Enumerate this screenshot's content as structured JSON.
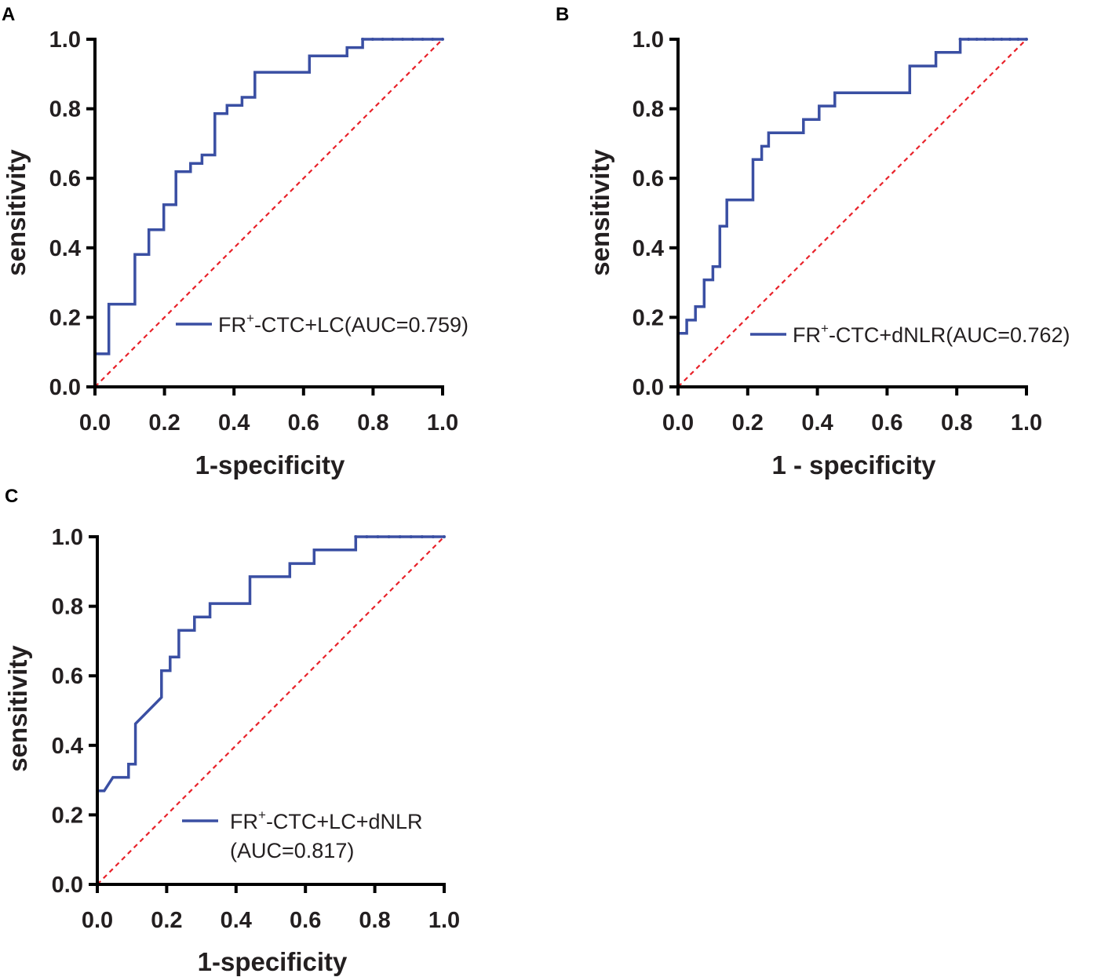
{
  "chart_data": [
    {
      "type": "line",
      "panel": "A",
      "xlabel": "1-specificity",
      "ylabel": "sensitivity",
      "xlim": [
        0,
        1
      ],
      "ylim": [
        0,
        1
      ],
      "xticks": [
        "0.0",
        "0.2",
        "0.4",
        "0.6",
        "0.8",
        "1.0"
      ],
      "yticks": [
        "0.0",
        "0.2",
        "0.4",
        "0.6",
        "0.8",
        "1.0"
      ],
      "legend": {
        "prefix": "FR",
        "sup": "+",
        "suffix": "-CTC+LC(AUC=0.759)",
        "line2": ""
      },
      "series": [
        {
          "name": "FR+-CTC+LC (AUC=0.759)",
          "color": "#3a4fa3",
          "x": [
            0,
            0,
            0.04,
            0.04,
            0.115,
            0.115,
            0.155,
            0.155,
            0.198,
            0.198,
            0.233,
            0.233,
            0.275,
            0.275,
            0.308,
            0.308,
            0.345,
            0.345,
            0.38,
            0.38,
            0.4,
            0.4,
            0.423,
            0.423,
            0.46,
            0.46,
            0.617,
            0.617,
            0.725,
            0.725,
            0.77,
            0.77,
            1.0
          ],
          "y": [
            0,
            0.095,
            0.095,
            0.238,
            0.238,
            0.381,
            0.381,
            0.452,
            0.452,
            0.524,
            0.524,
            0.619,
            0.619,
            0.643,
            0.643,
            0.667,
            0.667,
            0.786,
            0.786,
            0.81,
            0.81,
            0.81,
            0.81,
            0.833,
            0.833,
            0.905,
            0.905,
            0.952,
            0.952,
            0.976,
            0.976,
            1.0,
            1.0
          ]
        },
        {
          "name": "Reference",
          "color": "#e8222a",
          "x": [
            0,
            1
          ],
          "y": [
            0,
            1
          ]
        }
      ]
    },
    {
      "type": "line",
      "panel": "B",
      "xlabel": "1 - specificity",
      "ylabel": "sensitivity",
      "xlim": [
        0,
        1
      ],
      "ylim": [
        0,
        1
      ],
      "xticks": [
        "0.0",
        "0.2",
        "0.4",
        "0.6",
        "0.8",
        "1.0"
      ],
      "yticks": [
        "0.0",
        "0.2",
        "0.4",
        "0.6",
        "0.8",
        "1.0"
      ],
      "legend": {
        "prefix": "FR",
        "sup": "+",
        "suffix": "-CTC+dNLR(AUC=0.762)",
        "line2": ""
      },
      "series": [
        {
          "name": "FR+-CTC+dNLR (AUC=0.762)",
          "color": "#3a4fa3",
          "x": [
            0,
            0,
            0.025,
            0.025,
            0.05,
            0.05,
            0.075,
            0.075,
            0.1,
            0.1,
            0.12,
            0.12,
            0.14,
            0.14,
            0.215,
            0.215,
            0.24,
            0.24,
            0.26,
            0.26,
            0.36,
            0.36,
            0.405,
            0.405,
            0.45,
            0.45,
            0.665,
            0.665,
            0.74,
            0.74,
            0.81,
            0.81,
            1.0
          ],
          "y": [
            0,
            0.154,
            0.154,
            0.192,
            0.192,
            0.231,
            0.231,
            0.308,
            0.308,
            0.346,
            0.346,
            0.462,
            0.462,
            0.538,
            0.538,
            0.654,
            0.654,
            0.692,
            0.692,
            0.731,
            0.731,
            0.769,
            0.769,
            0.808,
            0.808,
            0.846,
            0.846,
            0.923,
            0.923,
            0.962,
            0.962,
            1.0,
            1.0
          ]
        },
        {
          "name": "Reference",
          "color": "#e8222a",
          "x": [
            0,
            1
          ],
          "y": [
            0,
            1
          ]
        }
      ]
    },
    {
      "type": "line",
      "panel": "C",
      "xlabel": "1-specificity",
      "ylabel": "sensitivity",
      "xlim": [
        0,
        1
      ],
      "ylim": [
        0,
        1
      ],
      "xticks": [
        "0.0",
        "0.2",
        "0.4",
        "0.6",
        "0.8",
        "1.0"
      ],
      "yticks": [
        "0.0",
        "0.2",
        "0.4",
        "0.6",
        "0.8",
        "1.0"
      ],
      "legend": {
        "prefix": "FR",
        "sup": "+",
        "suffix": "-CTC+LC+dNLR",
        "line2": "(AUC=0.817)"
      },
      "series": [
        {
          "name": "FR+-CTC+LC+dNLR (AUC=0.817)",
          "color": "#3a4fa3",
          "x": [
            0,
            0,
            0.02,
            0.045,
            0.065,
            0.065,
            0.09,
            0.09,
            0.11,
            0.11,
            0.185,
            0.185,
            0.21,
            0.21,
            0.235,
            0.235,
            0.28,
            0.28,
            0.325,
            0.325,
            0.44,
            0.44,
            0.555,
            0.555,
            0.625,
            0.625,
            0.745,
            0.745,
            1.0
          ],
          "y": [
            0,
            0.269,
            0.269,
            0.308,
            0.308,
            0.308,
            0.308,
            0.346,
            0.346,
            0.462,
            0.538,
            0.615,
            0.615,
            0.654,
            0.654,
            0.731,
            0.731,
            0.769,
            0.769,
            0.808,
            0.808,
            0.885,
            0.885,
            0.923,
            0.923,
            0.962,
            0.962,
            1.0,
            1.0
          ]
        },
        {
          "name": "Reference",
          "color": "#e8222a",
          "x": [
            0,
            1
          ],
          "y": [
            0,
            1
          ]
        }
      ]
    }
  ]
}
